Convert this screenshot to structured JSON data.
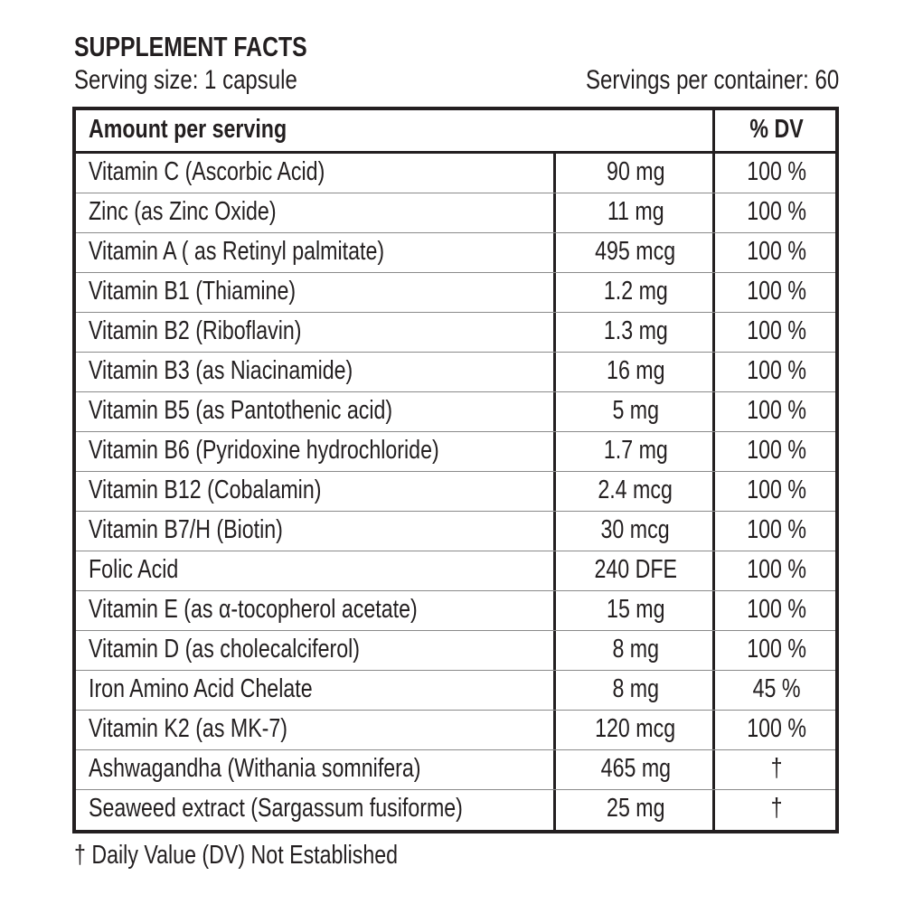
{
  "title": "SUPPLEMENT FACTS",
  "serving_size": "Serving size: 1 capsule",
  "servings_per_container": "Servings per container: 60",
  "table": {
    "header_amount": "Amount per serving",
    "header_dv": "% DV",
    "rows": [
      {
        "name": "Vitamin C (Ascorbic Acid)",
        "amount": "90 mg",
        "dv": "100 %"
      },
      {
        "name": "Zinc (as Zinc Oxide)",
        "amount": "11 mg",
        "dv": "100 %"
      },
      {
        "name": "Vitamin A ( as Retinyl palmitate)",
        "amount": "495 mcg",
        "dv": "100 %"
      },
      {
        "name": "Vitamin B1 (Thiamine)",
        "amount": "1.2 mg",
        "dv": "100 %"
      },
      {
        "name": "Vitamin B2 (Riboflavin)",
        "amount": "1.3 mg",
        "dv": "100 %"
      },
      {
        "name": "Vitamin B3 (as Niacinamide)",
        "amount": "16 mg",
        "dv": "100 %"
      },
      {
        "name": "Vitamin B5 (as Pantothenic acid)",
        "amount": "5 mg",
        "dv": "100 %"
      },
      {
        "name": "Vitamin B6 (Pyridoxine hydrochloride)",
        "amount": "1.7 mg",
        "dv": "100 %"
      },
      {
        "name": "Vitamin B12 (Cobalamin)",
        "amount": "2.4 mcg",
        "dv": "100 %"
      },
      {
        "name": "Vitamin B7/H (Biotin)",
        "amount": "30 mcg",
        "dv": "100 %"
      },
      {
        "name": "Folic Acid",
        "amount": "240 DFE",
        "dv": "100 %"
      },
      {
        "name": "Vitamin E (as α-tocopherol acetate)",
        "amount": "15 mg",
        "dv": "100 %"
      },
      {
        "name": "Vitamin D (as cholecalciferol)",
        "amount": "8 mg",
        "dv": "100 %"
      },
      {
        "name": "Iron Amino Acid Chelate",
        "amount": "8 mg",
        "dv": "45 %"
      },
      {
        "name": "Vitamin K2 (as MK-7)",
        "amount": "120 mcg",
        "dv": "100 %"
      },
      {
        "name": "Ashwagandha (Withania somnifera)",
        "amount": "465 mg",
        "dv": "†"
      },
      {
        "name": "Seaweed extract (Sargassum fusiforme)",
        "amount": "25 mg",
        "dv": "†"
      }
    ]
  },
  "footnote": "† Daily Value (DV) Not Established"
}
